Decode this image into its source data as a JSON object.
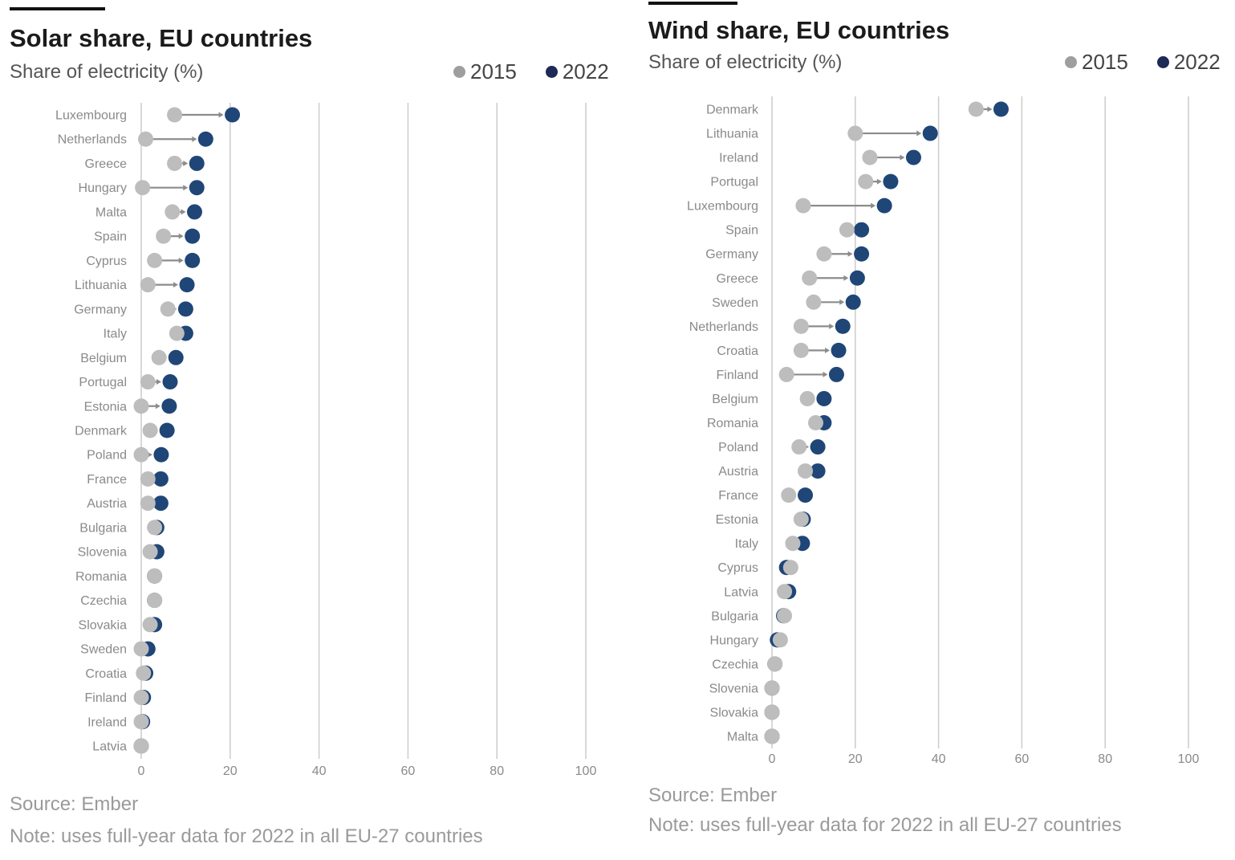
{
  "colors": {
    "y2015": "#bdbdbd",
    "y2022": "#1f4677",
    "line": "#8c8c8c",
    "grid": "#cccccc",
    "legend2015": "#9e9e9e",
    "legend2022": "#1c2a55"
  },
  "charts": [
    {
      "title": "Solar share, EU countries",
      "subtitle": "Share of electricity (%)",
      "source": "Source: Ember",
      "note": "Note: uses full-year data for 2022 in all EU-27 countries"
    },
    {
      "title": "Wind share, EU countries",
      "subtitle": "Share of electricity (%)",
      "source": "Source: Ember",
      "note": "Note: uses full-year data for 2022 in all EU-27 countries"
    }
  ],
  "chart_data": [
    {
      "type": "dumbbell",
      "title": "Solar share, EU countries",
      "subtitle": "Share of electricity (%)",
      "xlabel": "",
      "ylabel": "",
      "xlim": [
        0,
        100
      ],
      "xticks": [
        0,
        20,
        40,
        60,
        80,
        100
      ],
      "grid": true,
      "legend": {
        "position": "top-right",
        "entries": [
          "2015",
          "2022"
        ]
      },
      "categories": [
        "Luxembourg",
        "Netherlands",
        "Greece",
        "Hungary",
        "Malta",
        "Spain",
        "Cyprus",
        "Lithuania",
        "Germany",
        "Italy",
        "Belgium",
        "Portugal",
        "Estonia",
        "Denmark",
        "Poland",
        "France",
        "Austria",
        "Bulgaria",
        "Slovenia",
        "Romania",
        "Czechia",
        "Slovakia",
        "Sweden",
        "Croatia",
        "Finland",
        "Ireland",
        "Latvia"
      ],
      "series": [
        {
          "name": "2015",
          "values": [
            7.5,
            1,
            7.5,
            0.3,
            7,
            5,
            3,
            1.5,
            6,
            8,
            4,
            1.5,
            0,
            2,
            0,
            1.5,
            1.5,
            3,
            2,
            3,
            3,
            2,
            0,
            0.5,
            0,
            0,
            0
          ]
        },
        {
          "name": "2022",
          "values": [
            20.5,
            14.5,
            12.5,
            12.5,
            12,
            11.5,
            11.5,
            10.3,
            10,
            10,
            7.8,
            6.5,
            6.3,
            5.8,
            4.5,
            4.4,
            4.4,
            3.5,
            3.5,
            3,
            3,
            3,
            1.5,
            1,
            0.5,
            0.3,
            0
          ]
        }
      ]
    },
    {
      "type": "dumbbell",
      "title": "Wind share, EU countries",
      "subtitle": "Share of electricity (%)",
      "xlabel": "",
      "ylabel": "",
      "xlim": [
        0,
        100
      ],
      "xticks": [
        0,
        20,
        40,
        60,
        80,
        100
      ],
      "grid": true,
      "legend": {
        "position": "top-right",
        "entries": [
          "2015",
          "2022"
        ]
      },
      "categories": [
        "Denmark",
        "Lithuania",
        "Ireland",
        "Portugal",
        "Luxembourg",
        "Spain",
        "Germany",
        "Greece",
        "Sweden",
        "Netherlands",
        "Croatia",
        "Finland",
        "Belgium",
        "Romania",
        "Poland",
        "Austria",
        "France",
        "Estonia",
        "Italy",
        "Cyprus",
        "Latvia",
        "Bulgaria",
        "Hungary",
        "Czechia",
        "Slovenia",
        "Slovakia",
        "Malta"
      ],
      "series": [
        {
          "name": "2015",
          "values": [
            49,
            20,
            23.5,
            22.5,
            7.5,
            18,
            12.5,
            9,
            10,
            7,
            7,
            3.5,
            8.5,
            10.5,
            6.5,
            8,
            4,
            7,
            5,
            4.5,
            3,
            3,
            2,
            0.7,
            0,
            0,
            0
          ]
        },
        {
          "name": "2022",
          "values": [
            55,
            38,
            34,
            28.5,
            27,
            21.5,
            21.5,
            20.5,
            19.5,
            17,
            16,
            15.5,
            12.5,
            12.5,
            11,
            11,
            8,
            7.5,
            7.3,
            3.5,
            4,
            2.8,
            1.3,
            0.7,
            0,
            0,
            0
          ]
        }
      ]
    }
  ]
}
